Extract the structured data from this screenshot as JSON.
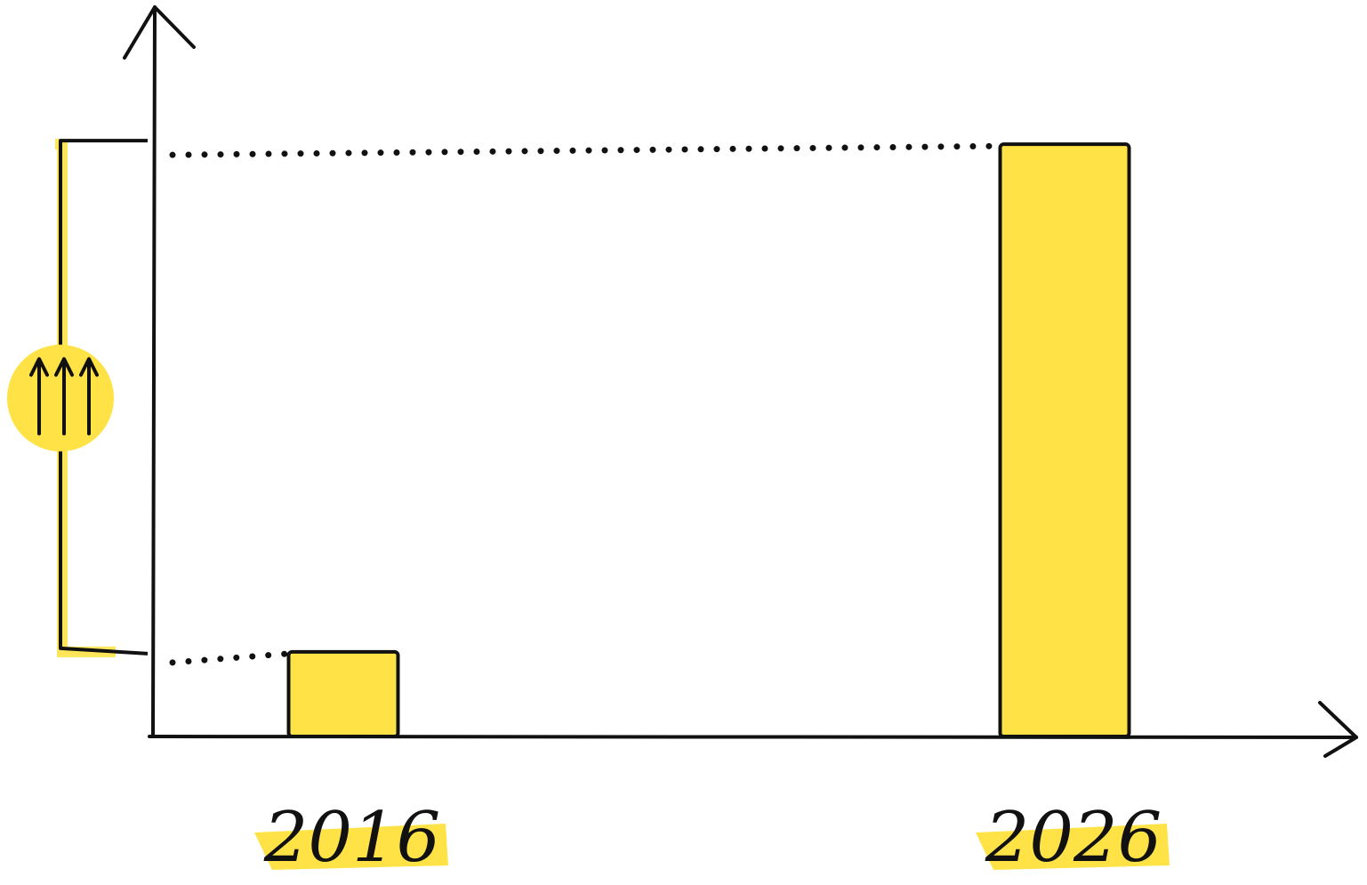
{
  "chart_data": {
    "type": "bar",
    "categories": [
      "2016",
      "2026"
    ],
    "values": [
      1,
      7
    ],
    "color": "#ffe346",
    "ylim": [
      0,
      8.6
    ]
  }
}
